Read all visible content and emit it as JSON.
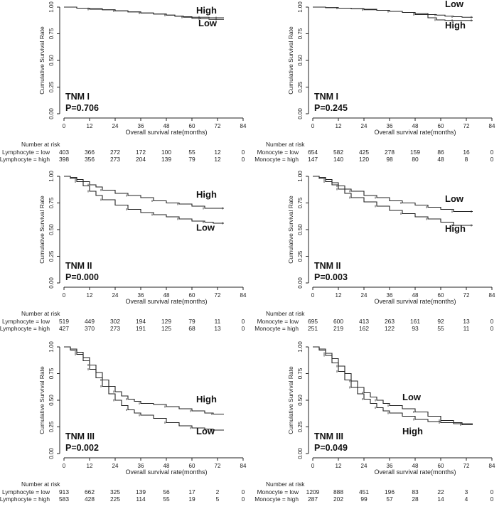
{
  "risk_header": "Number at risk",
  "xlabel": "Overall survival rate(months)",
  "ylabel": "Cumulative Survival Rate",
  "chart_data": [
    {
      "type": "line",
      "title": "TNM I",
      "pvalue": "P=0.706",
      "xlabel": "Overall survival rate(months)",
      "ylabel": "Cumulative Survival Rate",
      "xlim": [
        0,
        84
      ],
      "ylim": [
        0,
        1
      ],
      "xticks": [
        "0",
        "12",
        "24",
        "36",
        "48",
        "60",
        "72",
        "84"
      ],
      "yticks": [
        "0.00",
        "0.25",
        "0.50",
        "0.75",
        "1.00"
      ],
      "series": [
        {
          "name": "High",
          "label": "High",
          "x": [
            0,
            6,
            12,
            18,
            24,
            30,
            36,
            42,
            48,
            52,
            56,
            60,
            64,
            68,
            72,
            75
          ],
          "y": [
            1.0,
            0.99,
            0.98,
            0.975,
            0.965,
            0.955,
            0.945,
            0.935,
            0.925,
            0.915,
            0.91,
            0.905,
            0.905,
            0.9,
            0.9,
            0.9
          ]
        },
        {
          "name": "Low",
          "label": "Low",
          "x": [
            0,
            6,
            12,
            18,
            24,
            30,
            36,
            42,
            48,
            52,
            56,
            60,
            64,
            68,
            72,
            75
          ],
          "y": [
            1.0,
            0.99,
            0.985,
            0.975,
            0.965,
            0.955,
            0.945,
            0.935,
            0.925,
            0.915,
            0.905,
            0.895,
            0.89,
            0.885,
            0.885,
            0.885
          ]
        }
      ],
      "label_pos": [
        {
          "x": 62,
          "y": 0.94
        },
        {
          "x": 63,
          "y": 0.82
        }
      ],
      "risk": {
        "rows": [
          {
            "label": "Lymphocyte = low",
            "values": [
              "403",
              "366",
              "272",
              "172",
              "100",
              "55",
              "12",
              "0"
            ]
          },
          {
            "label": "Lymphocyte = high",
            "values": [
              "398",
              "356",
              "273",
              "204",
              "139",
              "79",
              "12",
              "0"
            ]
          }
        ]
      }
    },
    {
      "type": "line",
      "title": "TNM I",
      "pvalue": "P=0.245",
      "xlabel": "Overall survival rate(months)",
      "ylabel": "Cumulative Survival Rate",
      "xlim": [
        0,
        84
      ],
      "ylim": [
        0,
        1
      ],
      "xticks": [
        "0",
        "12",
        "24",
        "36",
        "48",
        "60",
        "72",
        "84"
      ],
      "yticks": [
        "0.00",
        "0.25",
        "0.50",
        "0.75",
        "1.00"
      ],
      "series": [
        {
          "name": "Low",
          "label": "Low",
          "x": [
            0,
            6,
            12,
            18,
            24,
            30,
            36,
            42,
            48,
            54,
            58,
            62,
            66,
            70,
            75
          ],
          "y": [
            1.0,
            0.995,
            0.99,
            0.985,
            0.975,
            0.97,
            0.96,
            0.95,
            0.94,
            0.93,
            0.925,
            0.915,
            0.91,
            0.905,
            0.905
          ]
        },
        {
          "name": "High",
          "label": "High",
          "x": [
            0,
            6,
            12,
            18,
            24,
            30,
            36,
            42,
            48,
            54,
            58,
            62,
            66,
            70,
            75
          ],
          "y": [
            1.0,
            0.995,
            0.99,
            0.985,
            0.98,
            0.97,
            0.96,
            0.95,
            0.93,
            0.9,
            0.88,
            0.875,
            0.875,
            0.875,
            0.875
          ]
        }
      ],
      "label_pos": [
        {
          "x": 62,
          "y": 1.0
        },
        {
          "x": 62,
          "y": 0.8
        }
      ],
      "risk": {
        "rows": [
          {
            "label": "Monocyte = low",
            "values": [
              "654",
              "582",
              "425",
              "278",
              "159",
              "86",
              "16",
              "0"
            ]
          },
          {
            "label": "Monocyte = high",
            "values": [
              "147",
              "140",
              "120",
              "98",
              "80",
              "48",
              "8",
              "0"
            ]
          }
        ]
      }
    },
    {
      "type": "line",
      "title": "TNM II",
      "pvalue": "P=0.000",
      "xlabel": "Overall survival rate(months)",
      "ylabel": "Cumulative Survival Rate",
      "xlim": [
        0,
        84
      ],
      "ylim": [
        0,
        1
      ],
      "xticks": [
        "0",
        "12",
        "24",
        "36",
        "48",
        "60",
        "72",
        "84"
      ],
      "yticks": [
        "0.00",
        "0.25",
        "0.50",
        "0.75",
        "1.00"
      ],
      "series": [
        {
          "name": "High",
          "label": "High",
          "x": [
            0,
            3,
            6,
            9,
            12,
            15,
            18,
            24,
            30,
            36,
            42,
            48,
            54,
            60,
            66,
            70,
            75
          ],
          "y": [
            1.0,
            0.99,
            0.97,
            0.95,
            0.92,
            0.9,
            0.87,
            0.84,
            0.82,
            0.8,
            0.77,
            0.75,
            0.74,
            0.72,
            0.7,
            0.7,
            0.7
          ]
        },
        {
          "name": "Low",
          "label": "Low",
          "x": [
            0,
            3,
            6,
            9,
            12,
            15,
            18,
            24,
            30,
            36,
            42,
            48,
            54,
            60,
            66,
            70,
            75
          ],
          "y": [
            1.0,
            0.98,
            0.95,
            0.91,
            0.86,
            0.82,
            0.78,
            0.73,
            0.69,
            0.66,
            0.64,
            0.62,
            0.6,
            0.58,
            0.57,
            0.56,
            0.56
          ]
        }
      ],
      "label_pos": [
        {
          "x": 62,
          "y": 0.8
        },
        {
          "x": 62,
          "y": 0.49
        }
      ],
      "risk": {
        "rows": [
          {
            "label": "Lymphocyte = low",
            "values": [
              "519",
              "449",
              "302",
              "194",
              "129",
              "79",
              "11",
              "0"
            ]
          },
          {
            "label": "Lymphocyte = high",
            "values": [
              "427",
              "370",
              "273",
              "191",
              "125",
              "68",
              "13",
              "0"
            ]
          }
        ]
      }
    },
    {
      "type": "line",
      "title": "TNM II",
      "pvalue": "P=0.003",
      "xlabel": "Overall survival rate(months)",
      "ylabel": "Cumulative Survival Rate",
      "xlim": [
        0,
        84
      ],
      "ylim": [
        0,
        1
      ],
      "xticks": [
        "0",
        "12",
        "24",
        "36",
        "48",
        "60",
        "72",
        "84"
      ],
      "yticks": [
        "0.00",
        "0.25",
        "0.50",
        "0.75",
        "1.00"
      ],
      "series": [
        {
          "name": "Low",
          "label": "Low",
          "x": [
            0,
            3,
            6,
            9,
            12,
            15,
            18,
            24,
            30,
            36,
            42,
            48,
            54,
            60,
            66,
            70,
            75
          ],
          "y": [
            1.0,
            0.99,
            0.97,
            0.94,
            0.91,
            0.88,
            0.86,
            0.82,
            0.8,
            0.77,
            0.75,
            0.73,
            0.71,
            0.69,
            0.67,
            0.67,
            0.67
          ]
        },
        {
          "name": "High",
          "label": "High",
          "x": [
            0,
            3,
            6,
            9,
            12,
            15,
            18,
            24,
            30,
            36,
            42,
            48,
            54,
            60,
            66,
            70,
            75
          ],
          "y": [
            1.0,
            0.98,
            0.95,
            0.92,
            0.88,
            0.84,
            0.8,
            0.76,
            0.72,
            0.68,
            0.65,
            0.62,
            0.6,
            0.57,
            0.54,
            0.54,
            0.54
          ]
        }
      ],
      "label_pos": [
        {
          "x": 62,
          "y": 0.76
        },
        {
          "x": 62,
          "y": 0.48
        }
      ],
      "risk": {
        "rows": [
          {
            "label": "Monocyte = low",
            "values": [
              "695",
              "600",
              "413",
              "263",
              "161",
              "92",
              "13",
              "0"
            ]
          },
          {
            "label": "Monocyte = high",
            "values": [
              "251",
              "219",
              "162",
              "122",
              "93",
              "55",
              "11",
              "0"
            ]
          }
        ]
      }
    },
    {
      "type": "line",
      "title": "TNM III",
      "pvalue": "P=0.002",
      "xlabel": "Overall survival rate(months)",
      "ylabel": "Cumulative Survival Rate",
      "xlim": [
        0,
        84
      ],
      "ylim": [
        0,
        1
      ],
      "xticks": [
        "0",
        "12",
        "24",
        "36",
        "48",
        "60",
        "72",
        "84"
      ],
      "yticks": [
        "0.00",
        "0.25",
        "0.50",
        "0.75",
        "1.00"
      ],
      "series": [
        {
          "name": "High",
          "label": "High",
          "x": [
            0,
            3,
            6,
            9,
            12,
            15,
            18,
            21,
            24,
            27,
            30,
            33,
            36,
            42,
            48,
            54,
            60,
            66,
            70,
            75
          ],
          "y": [
            1.0,
            0.98,
            0.95,
            0.9,
            0.83,
            0.76,
            0.69,
            0.63,
            0.58,
            0.54,
            0.51,
            0.49,
            0.47,
            0.46,
            0.44,
            0.42,
            0.4,
            0.38,
            0.37,
            0.37
          ]
        },
        {
          "name": "Low",
          "label": "Low",
          "x": [
            0,
            3,
            6,
            9,
            12,
            15,
            18,
            21,
            24,
            27,
            30,
            33,
            36,
            42,
            48,
            54,
            60,
            66,
            70,
            75
          ],
          "y": [
            1.0,
            0.97,
            0.93,
            0.87,
            0.79,
            0.71,
            0.63,
            0.56,
            0.5,
            0.45,
            0.41,
            0.38,
            0.36,
            0.33,
            0.29,
            0.26,
            0.24,
            0.23,
            0.22,
            0.22
          ]
        }
      ],
      "label_pos": [
        {
          "x": 62,
          "y": 0.48
        },
        {
          "x": 62,
          "y": 0.18
        }
      ],
      "risk": {
        "rows": [
          {
            "label": "Lymphocyte = low",
            "values": [
              "913",
              "662",
              "325",
              "139",
              "56",
              "17",
              "2",
              "0"
            ]
          },
          {
            "label": "Lymphocyte = high",
            "values": [
              "583",
              "428",
              "225",
              "114",
              "55",
              "19",
              "5",
              "0"
            ]
          }
        ]
      }
    },
    {
      "type": "line",
      "title": "TNM III",
      "pvalue": "P=0.049",
      "xlabel": "Overall survival rate(months)",
      "ylabel": "Cumulative Survival Rate",
      "xlim": [
        0,
        84
      ],
      "ylim": [
        0,
        1
      ],
      "xticks": [
        "0",
        "12",
        "24",
        "36",
        "48",
        "60",
        "72",
        "84"
      ],
      "yticks": [
        "0.00",
        "0.25",
        "0.50",
        "0.75",
        "1.00"
      ],
      "series": [
        {
          "name": "Low",
          "label": "Low",
          "x": [
            0,
            3,
            6,
            9,
            12,
            15,
            18,
            21,
            24,
            27,
            30,
            33,
            36,
            42,
            48,
            54,
            60,
            66,
            70,
            75
          ],
          "y": [
            1.0,
            0.98,
            0.94,
            0.89,
            0.82,
            0.75,
            0.68,
            0.62,
            0.57,
            0.53,
            0.5,
            0.47,
            0.45,
            0.42,
            0.39,
            0.35,
            0.31,
            0.29,
            0.28,
            0.28
          ]
        },
        {
          "name": "High",
          "label": "High",
          "x": [
            0,
            3,
            6,
            9,
            12,
            15,
            18,
            21,
            24,
            27,
            30,
            33,
            36,
            42,
            48,
            54,
            60,
            66,
            70,
            75
          ],
          "y": [
            1.0,
            0.97,
            0.92,
            0.85,
            0.77,
            0.69,
            0.62,
            0.56,
            0.51,
            0.47,
            0.43,
            0.4,
            0.38,
            0.35,
            0.32,
            0.3,
            0.29,
            0.28,
            0.27,
            0.27
          ]
        }
      ],
      "label_pos": [
        {
          "x": 42,
          "y": 0.5
        },
        {
          "x": 42,
          "y": 0.18
        }
      ],
      "risk": {
        "rows": [
          {
            "label": "Monocyte = low",
            "values": [
              "1209",
              "888",
              "451",
              "196",
              "83",
              "22",
              "3",
              "0"
            ]
          },
          {
            "label": "Monocyte = high",
            "values": [
              "287",
              "202",
              "99",
              "57",
              "28",
              "14",
              "4",
              "0"
            ]
          }
        ]
      }
    }
  ]
}
